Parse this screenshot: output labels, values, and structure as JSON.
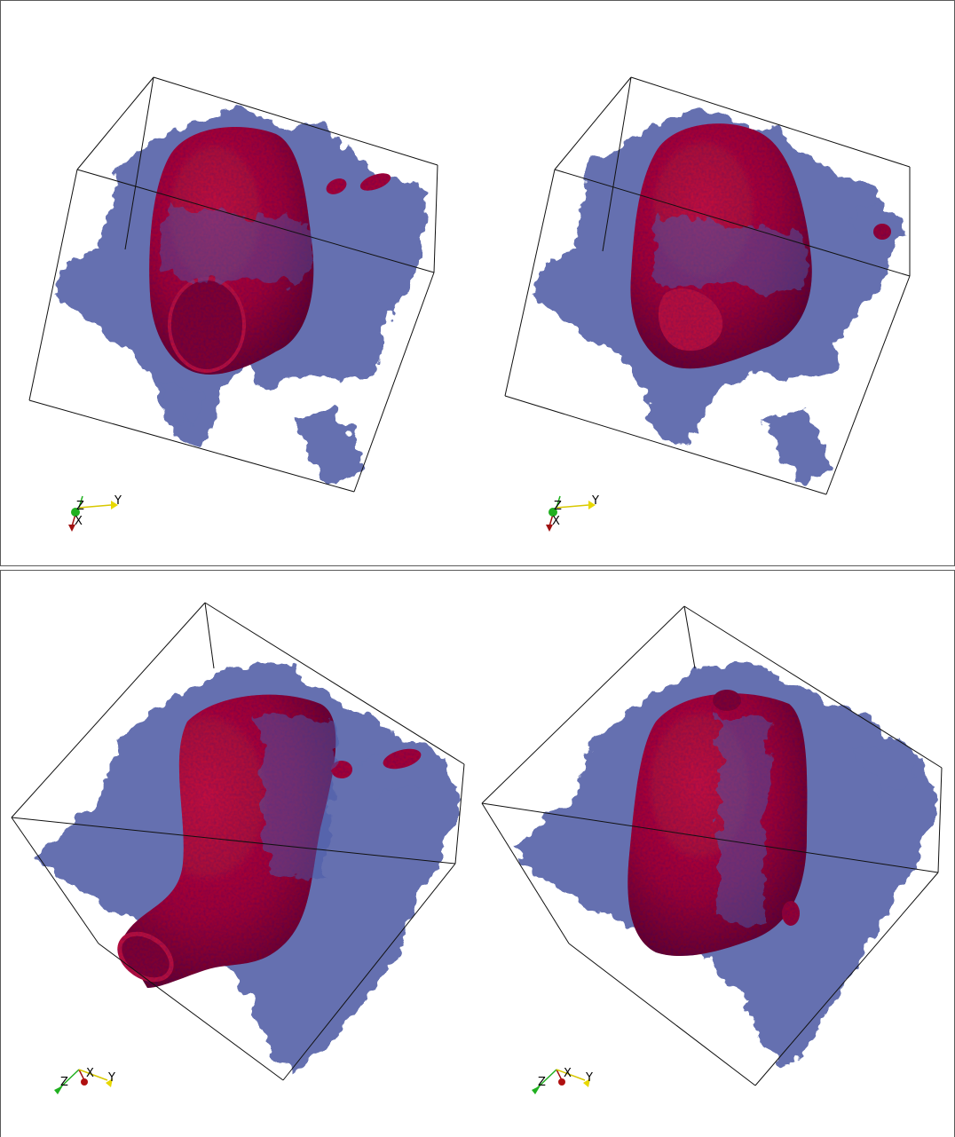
{
  "layout": "2x2 volume renderings",
  "colors": {
    "surface_red": "#b0102a",
    "surface_red_dark": "#7a0a1e",
    "tissue_blue": "#3a4a9a",
    "bounding_box": "#111111",
    "axis_x": "#b01010",
    "axis_y": "#e8d800",
    "axis_z": "#20b020"
  },
  "views": [
    {
      "axes": {
        "labels": [
          "Z",
          "Y",
          "X"
        ]
      }
    },
    {
      "axes": {
        "labels": [
          "Z",
          "Y",
          "X"
        ]
      }
    },
    {
      "axes": {
        "labels": [
          "Z",
          "X",
          "Y"
        ]
      }
    },
    {
      "axes": {
        "labels": [
          "Z",
          "X",
          "Y"
        ]
      }
    }
  ]
}
